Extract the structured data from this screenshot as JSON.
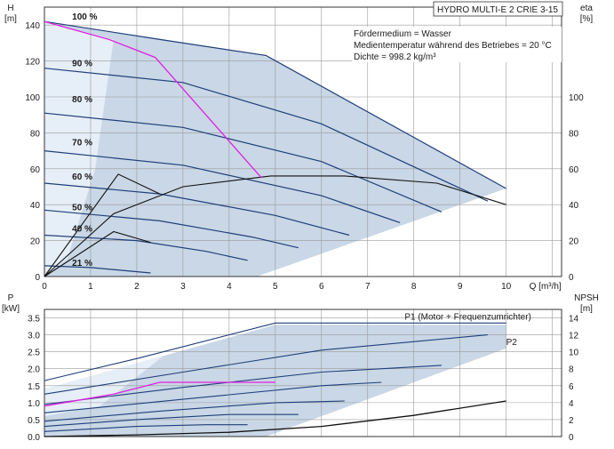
{
  "chart_data": [
    {
      "type": "line",
      "title": "HYDRO MULTI-E 2 CRIE 3-15",
      "info_lines": [
        "Fördermedium = Wasser",
        "Medientemperatur während des Betriebes = 20 °C",
        "Dichte = 998.2 kg/m³"
      ],
      "xlabel": "Q [m³/h]",
      "ylabel_left": "H\n[m]",
      "ylabel_left_parts": [
        "H",
        "[m]"
      ],
      "ylabel_right_parts": [
        "eta",
        "[%]"
      ],
      "xlim": [
        0,
        11.2
      ],
      "ylim_left": [
        0,
        150
      ],
      "ylim_right": [
        0,
        150
      ],
      "xticks": [
        0,
        1,
        2,
        3,
        4,
        5,
        6,
        7,
        8,
        9,
        10
      ],
      "yticks_left": [
        0,
        20,
        40,
        60,
        80,
        100,
        120,
        140
      ],
      "yticks_right": [
        0,
        20,
        40,
        60,
        80,
        100
      ],
      "grid": true,
      "shaded_envelope": [
        [
          0,
          142
        ],
        [
          2.6,
          132
        ],
        [
          4.9,
          122
        ],
        [
          10.0,
          49
        ],
        [
          4.6,
          0
        ],
        [
          0,
          0
        ]
      ],
      "speed_labels": [
        {
          "text": "100 %",
          "q": 0.6,
          "h": 143
        },
        {
          "text": "90 %",
          "q": 0.6,
          "h": 117
        },
        {
          "text": "80 %",
          "q": 0.6,
          "h": 97
        },
        {
          "text": "70 %",
          "q": 0.6,
          "h": 73
        },
        {
          "text": "60 %",
          "q": 0.6,
          "h": 54
        },
        {
          "text": "50 %",
          "q": 0.6,
          "h": 37
        },
        {
          "text": "40 %",
          "q": 0.6,
          "h": 25
        },
        {
          "text": "21 %",
          "q": 0.6,
          "h": 6
        }
      ],
      "series_head": [
        {
          "speed": "100 %",
          "x": [
            0,
            2.5,
            4.8,
            10.0
          ],
          "y": [
            142,
            132,
            123,
            49
          ]
        },
        {
          "speed": "90 %",
          "x": [
            0,
            3,
            6,
            9.6
          ],
          "y": [
            116,
            108,
            85,
            42
          ]
        },
        {
          "speed": "80 %",
          "x": [
            0,
            3,
            6,
            8.6
          ],
          "y": [
            91,
            83,
            64,
            36
          ]
        },
        {
          "speed": "70 %",
          "x": [
            0,
            3,
            6,
            7.7
          ],
          "y": [
            70,
            62,
            45,
            30
          ]
        },
        {
          "speed": "60 %",
          "x": [
            0,
            2.5,
            5,
            6.6
          ],
          "y": [
            52,
            46,
            34,
            23
          ]
        },
        {
          "speed": "50 %",
          "x": [
            0,
            2.5,
            4.5,
            5.5
          ],
          "y": [
            37,
            31,
            22,
            16
          ]
        },
        {
          "speed": "40 %",
          "x": [
            0,
            2,
            3.5,
            4.4
          ],
          "y": [
            23,
            20,
            14,
            9
          ]
        },
        {
          "speed": "21 %",
          "x": [
            0,
            1,
            2.3
          ],
          "y": [
            6,
            5,
            2
          ]
        }
      ],
      "series_magenta": {
        "x": [
          0,
          1.4,
          2.4,
          4.7
        ],
        "y": [
          142,
          132,
          122,
          55
        ]
      },
      "series_eta": [
        {
          "x": [
            0,
            1.5,
            3,
            4.9,
            6.5,
            8.5,
            10.0
          ],
          "y": [
            0,
            35,
            50,
            56,
            56,
            52,
            40
          ]
        },
        {
          "x": [
            0,
            1.6,
            2.5
          ],
          "y": [
            0,
            57,
            46
          ]
        },
        {
          "x": [
            0,
            1.5,
            2.3
          ],
          "y": [
            0,
            25,
            19
          ]
        }
      ]
    },
    {
      "type": "line",
      "xlabel": "Q [m³/h]",
      "ylabel_left_parts": [
        "P",
        "[kW]"
      ],
      "ylabel_right_parts": [
        "NPSH",
        "[m]"
      ],
      "xlim": [
        0,
        11.2
      ],
      "ylim_left": [
        0,
        3.75
      ],
      "ylim_right": [
        0,
        15
      ],
      "yticks_left": [
        0,
        0.5,
        1.0,
        1.5,
        2.0,
        2.5,
        3.0,
        3.5
      ],
      "ytick_labels_left": [
        "0.0",
        "0.5",
        "1.0",
        "1.5",
        "2.0",
        "2.5",
        "3.0",
        "3.5"
      ],
      "yticks_right": [
        0,
        2,
        4,
        6,
        8,
        10,
        12,
        14
      ],
      "grid": true,
      "legend_labels": [
        {
          "text": "P1 (Motor + Frequenzumrichter)",
          "q": 7.8,
          "p": 3.45
        },
        {
          "text": "P2",
          "q": 10.0,
          "p": 2.7
        }
      ],
      "shaded_envelope": [
        [
          0,
          1.4
        ],
        [
          5.0,
          3.3
        ],
        [
          10.0,
          3.3
        ],
        [
          10.0,
          2.6
        ],
        [
          4.8,
          0
        ],
        [
          0,
          0
        ]
      ],
      "series_p1": [
        {
          "x": [
            0,
            2,
            5,
            10
          ],
          "y": [
            1.65,
            2.3,
            3.35,
            3.35
          ]
        },
        {
          "x": [
            0,
            3,
            6,
            9.6
          ],
          "y": [
            1.25,
            1.9,
            2.55,
            3.0
          ]
        },
        {
          "x": [
            0,
            3,
            6,
            8.6
          ],
          "y": [
            0.95,
            1.45,
            1.9,
            2.1
          ]
        },
        {
          "x": [
            0,
            3,
            6,
            7.3
          ],
          "y": [
            0.7,
            1.1,
            1.5,
            1.6
          ]
        },
        {
          "x": [
            0,
            2.5,
            5,
            6.5
          ],
          "y": [
            0.45,
            0.75,
            1.0,
            1.05
          ]
        },
        {
          "x": [
            0,
            2,
            4,
            5.5
          ],
          "y": [
            0.3,
            0.5,
            0.65,
            0.65
          ]
        },
        {
          "x": [
            0,
            2,
            3.5,
            4.4
          ],
          "y": [
            0.15,
            0.3,
            0.35,
            0.35
          ]
        }
      ],
      "series_magenta": {
        "x": [
          0,
          1.5,
          2.5,
          5.0
        ],
        "y": [
          0.9,
          1.25,
          1.6,
          1.6
        ]
      },
      "series_npsh": {
        "x": [
          0,
          2,
          4,
          6,
          8,
          10.0
        ],
        "y": [
          0,
          0.2,
          0.5,
          1.2,
          2.5,
          4.2
        ]
      }
    }
  ]
}
